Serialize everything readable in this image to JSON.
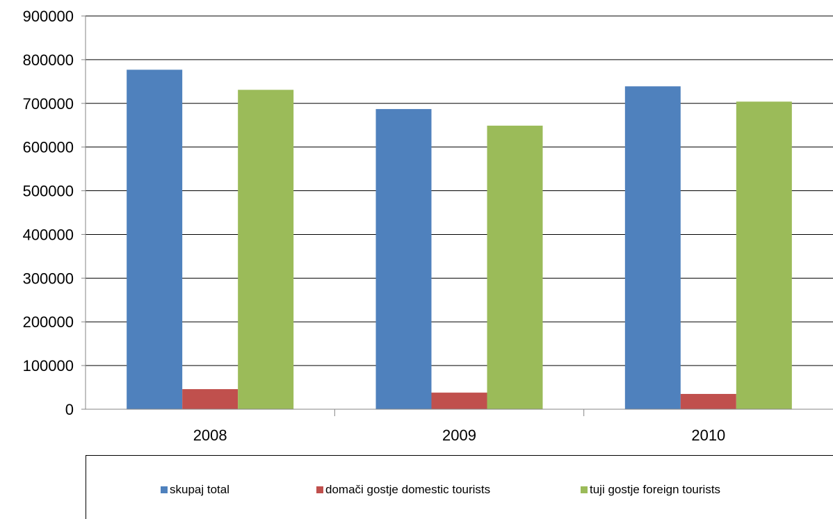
{
  "chart_data": {
    "type": "bar",
    "categories": [
      "2008",
      "2009",
      "2010"
    ],
    "series": [
      {
        "name": "skupaj total",
        "color": "#4F81BD",
        "values": [
          777000,
          687000,
          739000
        ]
      },
      {
        "name": "domači gostje domestic tourists",
        "color": "#C0504D",
        "values": [
          46000,
          38000,
          35000
        ]
      },
      {
        "name": "tuji gostje foreign tourists",
        "color": "#9BBB59",
        "values": [
          731000,
          649000,
          704000
        ]
      }
    ],
    "yticks": [
      "0",
      "100000",
      "200000",
      "300000",
      "400000",
      "500000",
      "600000",
      "700000",
      "800000",
      "900000"
    ],
    "ylim": [
      0,
      900000
    ],
    "grid": true,
    "legend": "bottom"
  }
}
